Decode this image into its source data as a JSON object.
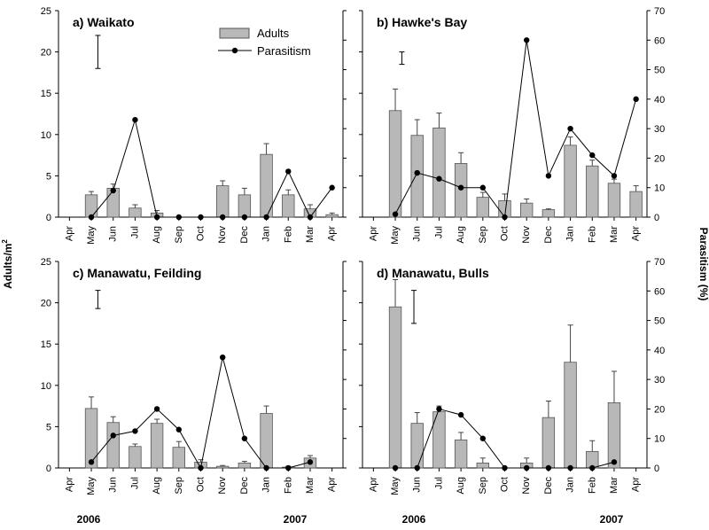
{
  "chart_data": {
    "type": "bar",
    "ylabel": "Adults/m",
    "ylabel_superscript": "2",
    "y2label": "Parasitism (%)",
    "ylim": [
      0,
      25
    ],
    "y_ticks": [
      "0",
      "5",
      "10",
      "15",
      "20",
      "25"
    ],
    "y2lim": [
      0,
      70
    ],
    "y2_ticks": [
      "0",
      "10",
      "20",
      "30",
      "40",
      "50",
      "60",
      "70"
    ],
    "months": [
      "Apr",
      "May",
      "Jun",
      "Jul",
      "Aug",
      "Sep",
      "Oct",
      "Nov",
      "Dec",
      "Jan",
      "Feb",
      "Mar",
      "Apr"
    ],
    "years": [
      "2006",
      "2007"
    ],
    "legend": {
      "bars": "Adults",
      "line": "Parasitism"
    },
    "colors": {
      "bar_fill": "#b8b8b8",
      "bar_stroke": "#555555",
      "line": "#000000"
    },
    "panels": [
      {
        "title": "a) Waikato",
        "adults": [
          null,
          2.7,
          3.5,
          1.1,
          0.5,
          0,
          0,
          3.8,
          2.7,
          7.6,
          2.7,
          1.0,
          0.3
        ],
        "adults_err": [
          null,
          0.4,
          0.5,
          0.4,
          0.3,
          0,
          0,
          0.6,
          0.8,
          1.3,
          0.6,
          0.5,
          0.2
        ],
        "parasitism": [
          null,
          0,
          9,
          33,
          0,
          0,
          0,
          0,
          0,
          0,
          15.5,
          0,
          10
        ],
        "lsd": {
          "x": 1.3,
          "low": 18,
          "high": 22
        }
      },
      {
        "title": "b) Hawke's Bay",
        "adults": [
          null,
          12.9,
          9.9,
          10.8,
          6.5,
          2.4,
          2.0,
          1.7,
          0.9,
          8.7,
          6.2,
          4.1,
          3.1
        ],
        "adults_err": [
          null,
          2.6,
          1.9,
          1.8,
          1.3,
          0.6,
          0.8,
          0.5,
          0.1,
          1.0,
          0.7,
          0.5,
          0.7
        ],
        "parasitism": [
          null,
          1,
          15,
          13,
          10,
          10,
          0,
          60,
          14,
          30,
          21,
          14,
          40
        ],
        "lsd": {
          "x": 1.3,
          "low": 18.5,
          "high": 20
        }
      },
      {
        "title": "c) Manawatu, Feilding",
        "adults": [
          null,
          7.2,
          5.5,
          2.6,
          5.4,
          2.5,
          0.7,
          0.2,
          0.6,
          6.6,
          0.1,
          1.2
        ],
        "adults_err": [
          null,
          1.4,
          0.7,
          0.3,
          0.5,
          0.7,
          0.3,
          0.1,
          0.2,
          0.9,
          0.1,
          0.3
        ],
        "parasitism": [
          null,
          2,
          11,
          12.5,
          20,
          13,
          0,
          37.5,
          10,
          0,
          0,
          2
        ],
        "lsd": {
          "x": 1.3,
          "low": 19.3,
          "high": 21.5
        }
      },
      {
        "title": "d) Manawatu, Bulls",
        "adults": [
          null,
          19.5,
          5.4,
          6.8,
          3.4,
          0.6,
          0,
          0.6,
          6.1,
          12.8,
          2.0,
          7.9
        ],
        "adults_err": [
          null,
          3.3,
          1.3,
          0.7,
          0.9,
          0.6,
          0,
          0.6,
          2.0,
          4.5,
          1.3,
          3.8
        ],
        "parasitism": [
          null,
          0,
          0,
          20,
          18,
          10,
          0,
          0,
          0,
          0,
          0,
          2
        ],
        "lsd": {
          "x": 1.85,
          "low": 17.5,
          "high": 21.5
        }
      }
    ]
  }
}
